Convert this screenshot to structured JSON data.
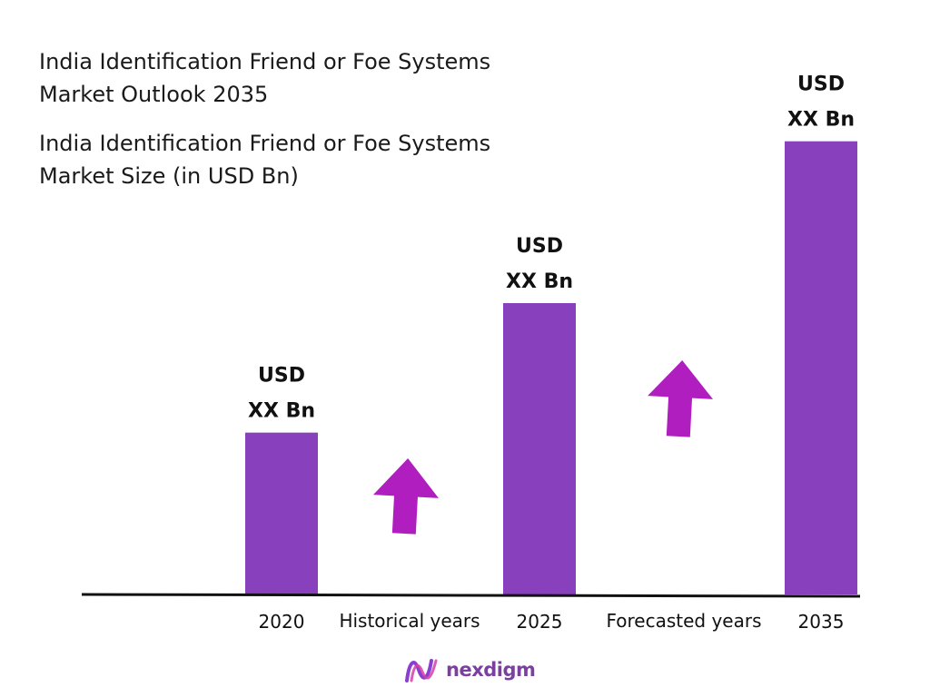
{
  "header": {
    "title_line1": "India Identification Friend or Foe Systems",
    "title_line2": "Market Outlook 2035",
    "subtitle_line1": "India Identification Friend or Foe Systems",
    "subtitle_line2": "Market Size (in USD Bn)"
  },
  "brand": {
    "name": "nexdigm",
    "color": "#7b3fa0"
  },
  "colors": {
    "bar": "#8840bd",
    "arrow": "#b01ec0",
    "axis": "#111111"
  },
  "chart_data": {
    "type": "bar",
    "categories": [
      "2020",
      "2025",
      "2035"
    ],
    "values": [
      100,
      180,
      280
    ],
    "value_labels": [
      [
        "USD",
        "XX Bn"
      ],
      [
        "USD",
        "XX Bn"
      ],
      [
        "USD",
        "XX Bn"
      ]
    ],
    "period_labels": [
      "Historical years",
      "Forecasted years"
    ],
    "ylim": [
      0,
      300
    ],
    "grid": false,
    "legend": "none"
  }
}
